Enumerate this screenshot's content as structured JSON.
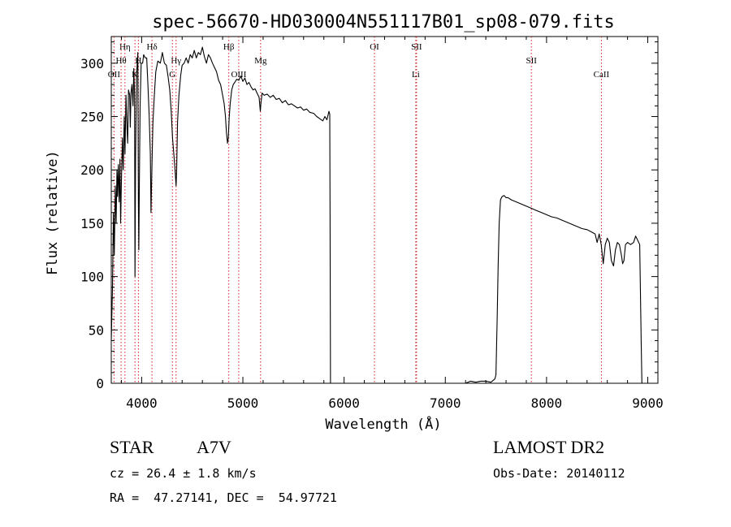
{
  "chart_data": {
    "type": "line",
    "title": "spec-56670-HD030004N551117B01_sp08-079.fits",
    "xlabel": "Wavelength (Å)",
    "ylabel": "Flux (relative)",
    "xlim": [
      3700,
      9100
    ],
    "ylim": [
      0,
      325
    ],
    "xticks": [
      4000,
      5000,
      6000,
      7000,
      8000,
      9000
    ],
    "yticks": [
      0,
      50,
      100,
      150,
      200,
      250,
      300
    ],
    "grid": false,
    "series": [
      {
        "points": [
          [
            3700,
            40
          ],
          [
            3712,
            90
          ],
          [
            3722,
            160
          ],
          [
            3730,
            120
          ],
          [
            3740,
            185
          ],
          [
            3748,
            150
          ],
          [
            3756,
            200
          ],
          [
            3762,
            175
          ],
          [
            3770,
            205
          ],
          [
            3778,
            170
          ],
          [
            3786,
            210
          ],
          [
            3792,
            150
          ],
          [
            3800,
            190
          ],
          [
            3810,
            230
          ],
          [
            3818,
            200
          ],
          [
            3828,
            250
          ],
          [
            3836,
            215
          ],
          [
            3845,
            270
          ],
          [
            3855,
            240
          ],
          [
            3862,
            225
          ],
          [
            3870,
            275
          ],
          [
            3882,
            270
          ],
          [
            3888,
            240
          ],
          [
            3895,
            272
          ],
          [
            3905,
            280
          ],
          [
            3915,
            260
          ],
          [
            3922,
            295
          ],
          [
            3930,
            270
          ],
          [
            3934,
            100
          ],
          [
            3940,
            210
          ],
          [
            3950,
            290
          ],
          [
            3962,
            310
          ],
          [
            3968,
            170
          ],
          [
            3972,
            125
          ],
          [
            3978,
            190
          ],
          [
            3985,
            260
          ],
          [
            3995,
            300
          ],
          [
            4010,
            300
          ],
          [
            4020,
            308
          ],
          [
            4035,
            305
          ],
          [
            4050,
            305
          ],
          [
            4062,
            280
          ],
          [
            4075,
            250
          ],
          [
            4086,
            215
          ],
          [
            4092,
            160
          ],
          [
            4102,
            205
          ],
          [
            4112,
            245
          ],
          [
            4125,
            270
          ],
          [
            4140,
            292
          ],
          [
            4160,
            302
          ],
          [
            4185,
            300
          ],
          [
            4205,
            310
          ],
          [
            4225,
            300
          ],
          [
            4245,
            298
          ],
          [
            4262,
            287
          ],
          [
            4278,
            275
          ],
          [
            4292,
            255
          ],
          [
            4305,
            230
          ],
          [
            4318,
            215
          ],
          [
            4330,
            200
          ],
          [
            4340,
            185
          ],
          [
            4346,
            200
          ],
          [
            4355,
            245
          ],
          [
            4368,
            270
          ],
          [
            4385,
            288
          ],
          [
            4400,
            298
          ],
          [
            4420,
            300
          ],
          [
            4440,
            305
          ],
          [
            4460,
            300
          ],
          [
            4480,
            308
          ],
          [
            4500,
            305
          ],
          [
            4520,
            312
          ],
          [
            4540,
            305
          ],
          [
            4560,
            310
          ],
          [
            4580,
            308
          ],
          [
            4600,
            315
          ],
          [
            4620,
            306
          ],
          [
            4640,
            300
          ],
          [
            4660,
            308
          ],
          [
            4680,
            305
          ],
          [
            4700,
            300
          ],
          [
            4720,
            296
          ],
          [
            4740,
            292
          ],
          [
            4760,
            284
          ],
          [
            4780,
            280
          ],
          [
            4800,
            270
          ],
          [
            4815,
            262
          ],
          [
            4828,
            250
          ],
          [
            4838,
            235
          ],
          [
            4848,
            225
          ],
          [
            4856,
            230
          ],
          [
            4864,
            248
          ],
          [
            4875,
            262
          ],
          [
            4890,
            275
          ],
          [
            4905,
            280
          ],
          [
            4920,
            282
          ],
          [
            4940,
            285
          ],
          [
            4960,
            284
          ],
          [
            4980,
            288
          ],
          [
            5000,
            283
          ],
          [
            5020,
            286
          ],
          [
            5040,
            280
          ],
          [
            5060,
            282
          ],
          [
            5080,
            278
          ],
          [
            5100,
            275
          ],
          [
            5120,
            276
          ],
          [
            5140,
            272
          ],
          [
            5160,
            268
          ],
          [
            5172,
            255
          ],
          [
            5178,
            262
          ],
          [
            5190,
            272
          ],
          [
            5210,
            270
          ],
          [
            5240,
            271
          ],
          [
            5270,
            268
          ],
          [
            5300,
            270
          ],
          [
            5330,
            266
          ],
          [
            5360,
            267
          ],
          [
            5390,
            263
          ],
          [
            5420,
            265
          ],
          [
            5450,
            261
          ],
          [
            5480,
            262
          ],
          [
            5510,
            260
          ],
          [
            5540,
            258
          ],
          [
            5570,
            259
          ],
          [
            5600,
            256
          ],
          [
            5630,
            257
          ],
          [
            5660,
            254
          ],
          [
            5700,
            253
          ],
          [
            5730,
            250
          ],
          [
            5760,
            248
          ],
          [
            5790,
            246
          ],
          [
            5810,
            250
          ],
          [
            5830,
            247
          ],
          [
            5850,
            255
          ],
          [
            5858,
            252
          ],
          [
            5862,
            150
          ],
          [
            5866,
            0
          ],
          [
            5900,
            0
          ],
          [
            6500,
            0
          ],
          [
            7000,
            0
          ],
          [
            7200,
            0
          ],
          [
            7250,
            2
          ],
          [
            7300,
            1
          ],
          [
            7350,
            2
          ],
          [
            7400,
            2
          ],
          [
            7450,
            1
          ],
          [
            7490,
            4
          ],
          [
            7500,
            8
          ],
          [
            7512,
            60
          ],
          [
            7522,
            110
          ],
          [
            7532,
            150
          ],
          [
            7545,
            172
          ],
          [
            7560,
            175
          ],
          [
            7580,
            176
          ],
          [
            7600,
            174
          ],
          [
            7620,
            174
          ],
          [
            7650,
            172
          ],
          [
            7700,
            170
          ],
          [
            7750,
            168
          ],
          [
            7800,
            166
          ],
          [
            7850,
            164
          ],
          [
            7900,
            162
          ],
          [
            7950,
            160
          ],
          [
            8000,
            158
          ],
          [
            8050,
            156
          ],
          [
            8100,
            155
          ],
          [
            8150,
            153
          ],
          [
            8200,
            151
          ],
          [
            8250,
            149
          ],
          [
            8300,
            147
          ],
          [
            8350,
            145
          ],
          [
            8400,
            144
          ],
          [
            8440,
            142
          ],
          [
            8480,
            140
          ],
          [
            8500,
            132
          ],
          [
            8520,
            140
          ],
          [
            8540,
            130
          ],
          [
            8560,
            112
          ],
          [
            8580,
            130
          ],
          [
            8600,
            136
          ],
          [
            8620,
            132
          ],
          [
            8640,
            115
          ],
          [
            8662,
            110
          ],
          [
            8680,
            125
          ],
          [
            8700,
            132
          ],
          [
            8720,
            130
          ],
          [
            8740,
            120
          ],
          [
            8752,
            112
          ],
          [
            8765,
            115
          ],
          [
            8780,
            130
          ],
          [
            8800,
            132
          ],
          [
            8830,
            130
          ],
          [
            8860,
            132
          ],
          [
            8880,
            138
          ],
          [
            8900,
            134
          ],
          [
            8920,
            130
          ],
          [
            8935,
            40
          ],
          [
            8942,
            0
          ]
        ]
      }
    ],
    "line_markers": [
      {
        "label": "Hη",
        "wl": 3835,
        "row": 0
      },
      {
        "label": "Hθ",
        "wl": 3797,
        "row": 1
      },
      {
        "label": "OII",
        "wl": 3727,
        "row": 2
      },
      {
        "label": "Hδ",
        "wl": 4102,
        "row": 0
      },
      {
        "label": "H",
        "wl": 3968,
        "row": 1
      },
      {
        "label": "K",
        "wl": 3934,
        "row": 2
      },
      {
        "label": "Hγ",
        "wl": 4340,
        "row": 1
      },
      {
        "label": "G",
        "wl": 4304,
        "row": 2
      },
      {
        "label": "Hβ",
        "wl": 4861,
        "row": 0
      },
      {
        "label": "Mg",
        "wl": 5175,
        "row": 1
      },
      {
        "label": "OIII",
        "wl": 4959,
        "row": 2
      },
      {
        "label": "OI",
        "wl": 6300,
        "row": 0
      },
      {
        "label": "SII",
        "wl": 6716,
        "row": 0
      },
      {
        "label": "Li",
        "wl": 6708,
        "row": 2
      },
      {
        "label": "SII",
        "wl": 7850,
        "row": 1
      },
      {
        "label": "CaII",
        "wl": 8542,
        "row": 2
      }
    ],
    "marker_color": "#cc2222",
    "line_color": "#000000"
  },
  "info": {
    "class": "STAR",
    "subclass": "A7V",
    "survey": "LAMOST DR2",
    "cz": "cz = 26.4 ± 1.8 km/s",
    "obs_date": "Obs-Date: 20140112",
    "coords": "RA =  47.27141, DEC =  54.97721"
  }
}
